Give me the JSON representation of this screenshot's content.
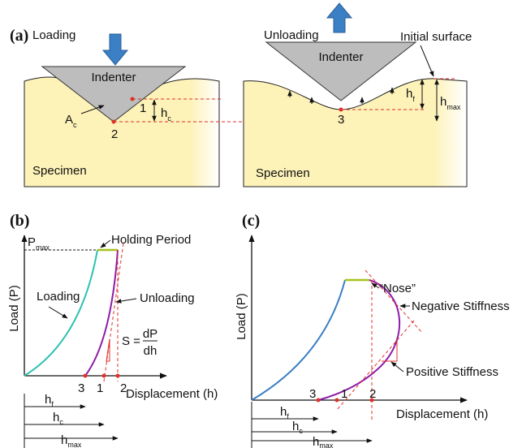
{
  "a": {
    "label": "(a)",
    "loading": "Loading",
    "indenter_left": "Indenter",
    "contact_area": {
      "base": "A",
      "sub": "c"
    },
    "point_1": "1",
    "point_2": "2",
    "contact_depth": {
      "base": "h",
      "sub": "c"
    },
    "specimen_left": "Specimen",
    "unloading": "Unloading",
    "indenter_right": "Indenter",
    "initial_surface": "Initial surface",
    "point_3": "3",
    "final_depth": {
      "base": "h",
      "sub": "f"
    },
    "max_depth": {
      "base": "h",
      "sub": "max"
    },
    "specimen_right": "Specimen"
  },
  "b": {
    "label": "(b)",
    "p_max": {
      "base": "P",
      "sub": "max"
    },
    "holding_period": "Holding Period",
    "loading": "Loading",
    "unloading": "Unloading",
    "stiffness": {
      "lhs": "S =",
      "num": "dP",
      "den": "dh"
    },
    "y_axis": "Load (P)",
    "x_axis": "Displacement (h)",
    "points": [
      "3",
      "1",
      "2"
    ],
    "h_f": {
      "base": "h",
      "sub": "f"
    },
    "h_c": {
      "base": "h",
      "sub": "c"
    },
    "h_max": {
      "base": "h",
      "sub": "max"
    }
  },
  "c": {
    "label": "(c)",
    "nose": "“Nose”",
    "negative_stiffness": "Negative Stiffness",
    "positive_stiffness": "Positive Stiffness",
    "y_axis": "Load (P)",
    "x_axis": "Displacement (h)",
    "points": [
      "3",
      "1",
      "2"
    ],
    "h_f": {
      "base": "h",
      "sub": "f"
    },
    "h_c": {
      "base": "h",
      "sub": "c"
    },
    "h_max": {
      "base": "h",
      "sub": "max"
    }
  }
}
